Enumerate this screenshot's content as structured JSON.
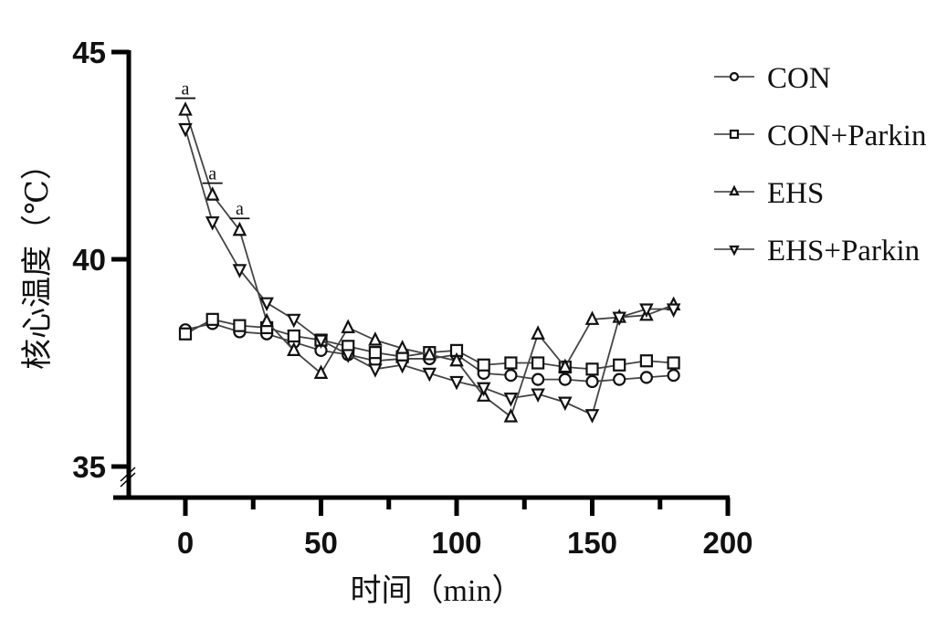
{
  "chart_data": {
    "type": "line",
    "title": "",
    "xlabel": "时间（min）",
    "ylabel": "核心温度（℃）",
    "xlim": [
      -20,
      200
    ],
    "ylim": [
      35,
      45
    ],
    "xticks": [
      0,
      50,
      100,
      150,
      200
    ],
    "xtick_labels": [
      "0",
      "50",
      "100",
      "150",
      "200"
    ],
    "yticks": [
      35,
      40,
      45
    ],
    "ytick_labels": [
      "35",
      "40",
      "45"
    ],
    "y_axis_break": true,
    "grid": false,
    "legend_position": "right",
    "x": [
      0,
      10,
      20,
      30,
      40,
      50,
      60,
      70,
      80,
      90,
      100,
      110,
      120,
      130,
      140,
      150,
      160,
      170,
      180
    ],
    "series": [
      {
        "name": "CON",
        "marker": "circle",
        "values": [
          38.3,
          38.45,
          38.25,
          38.2,
          38.0,
          37.8,
          37.7,
          37.55,
          37.6,
          37.6,
          37.7,
          37.25,
          37.2,
          37.1,
          37.1,
          37.05,
          37.1,
          37.15,
          37.2
        ]
      },
      {
        "name": "CON+Parkin",
        "marker": "square",
        "values": [
          38.2,
          38.55,
          38.4,
          38.35,
          38.15,
          38.05,
          37.9,
          37.75,
          37.65,
          37.75,
          37.8,
          37.45,
          37.5,
          37.5,
          37.4,
          37.35,
          37.45,
          37.55,
          37.5
        ]
      },
      {
        "name": "EHS",
        "marker": "triangle-up",
        "values": [
          43.6,
          41.55,
          40.7,
          38.5,
          37.8,
          37.25,
          38.35,
          38.05,
          37.85,
          37.7,
          37.55,
          36.7,
          36.2,
          38.2,
          37.4,
          38.55,
          38.6,
          38.65,
          38.9
        ]
      },
      {
        "name": "EHS+Parkin",
        "marker": "triangle-down",
        "values": [
          43.15,
          40.9,
          39.75,
          38.95,
          38.55,
          38.05,
          37.7,
          37.35,
          37.45,
          37.25,
          37.05,
          36.9,
          36.65,
          36.75,
          36.55,
          36.25,
          38.6,
          38.8,
          38.8
        ]
      }
    ],
    "annotations": [
      {
        "text": "a",
        "x": 0,
        "series": "EHS"
      },
      {
        "text": "a",
        "x": 10,
        "series": "EHS"
      },
      {
        "text": "a",
        "x": 20,
        "series": "EHS"
      }
    ]
  }
}
